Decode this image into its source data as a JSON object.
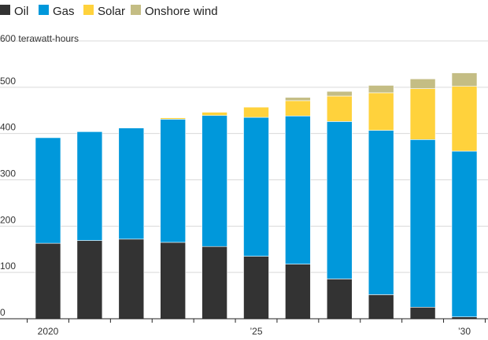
{
  "chart_data": {
    "type": "bar",
    "stacked": true,
    "unit_label": "600 terawatt-hours",
    "categories": [
      "2020",
      "2021",
      "2022",
      "2023",
      "2024",
      "2025",
      "2026",
      "2027",
      "2028",
      "2029",
      "2030"
    ],
    "x_tick_labels": [
      {
        "index": 0,
        "label": "2020"
      },
      {
        "index": 5,
        "label": "’25"
      },
      {
        "index": 10,
        "label": "’30"
      }
    ],
    "y_ticks": [
      {
        "value": 0,
        "label": "0"
      },
      {
        "value": 100,
        "label": "100"
      },
      {
        "value": 200,
        "label": "200"
      },
      {
        "value": 300,
        "label": "300"
      },
      {
        "value": 400,
        "label": "400"
      },
      {
        "value": 500,
        "label": "500"
      },
      {
        "value": 600,
        "label": ""
      }
    ],
    "ylim": [
      0,
      600
    ],
    "grid": true,
    "legend_position": "top-left",
    "series": [
      {
        "name": "Oil",
        "color": "#333333",
        "values": [
          163,
          169,
          172,
          165,
          156,
          135,
          118,
          86,
          52,
          25,
          4
        ]
      },
      {
        "name": "Gas",
        "color": "#0098db",
        "values": [
          228,
          235,
          240,
          266,
          283,
          300,
          320,
          340,
          355,
          362,
          358
        ]
      },
      {
        "name": "Solar",
        "color": "#ffd23c",
        "values": [
          0,
          0,
          0,
          3,
          7,
          22,
          33,
          55,
          81,
          110,
          140
        ]
      },
      {
        "name": "Onshore wind",
        "color": "#c4bd84",
        "values": [
          0,
          0,
          0,
          0,
          0,
          0,
          7,
          10,
          16,
          21,
          29
        ]
      }
    ]
  }
}
